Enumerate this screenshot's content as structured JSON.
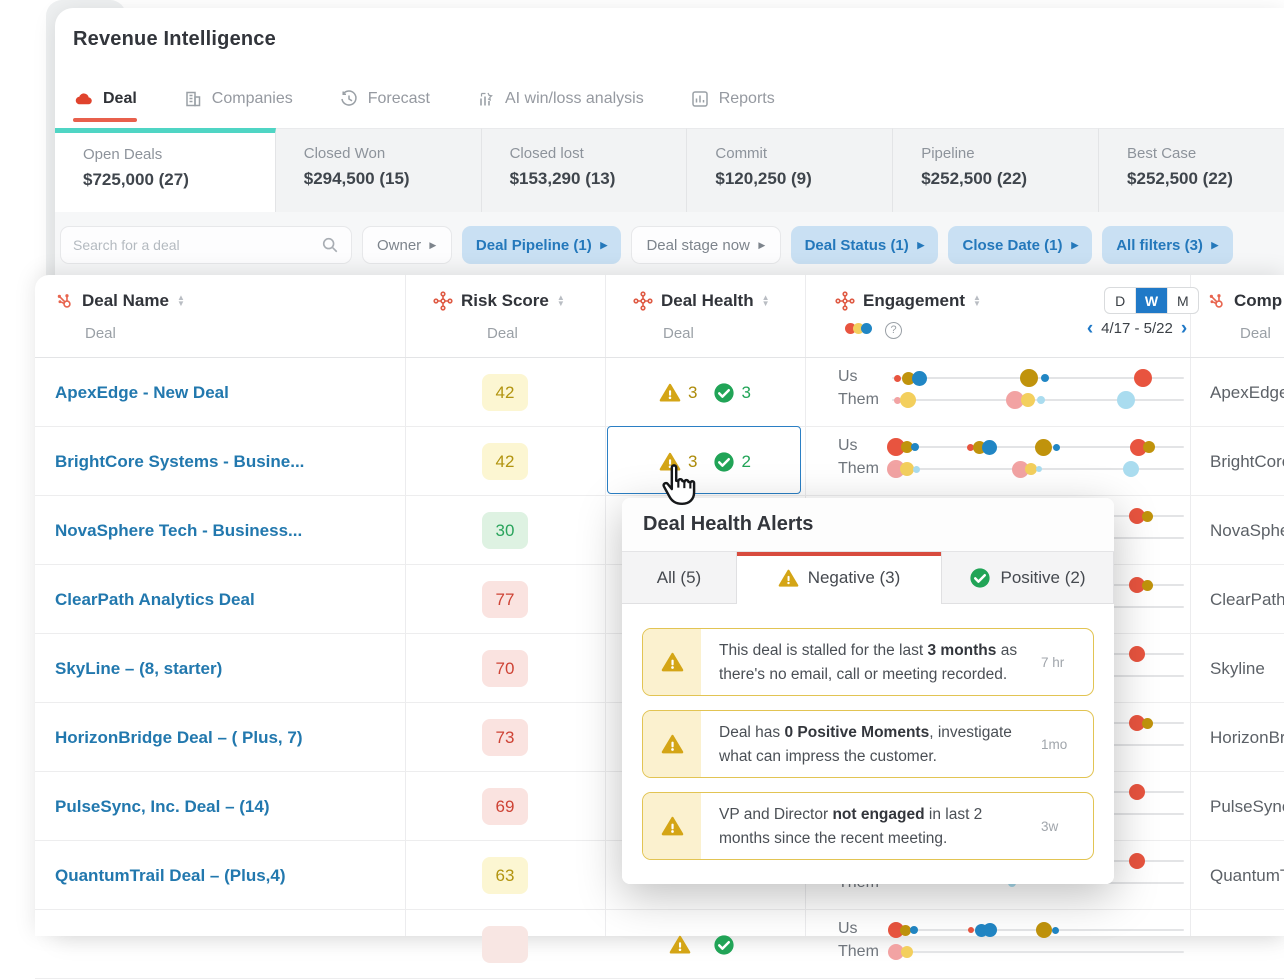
{
  "app": {
    "title": "Revenue Intelligence"
  },
  "nav": {
    "tabs": [
      {
        "label": "Deal",
        "icon": "deal-cloud-icon",
        "active": true
      },
      {
        "label": "Companies",
        "icon": "companies-icon",
        "active": false
      },
      {
        "label": "Forecast",
        "icon": "forecast-icon",
        "active": false
      },
      {
        "label": "AI win/loss analysis",
        "icon": "ai-analysis-icon",
        "active": false
      },
      {
        "label": "Reports",
        "icon": "reports-icon",
        "active": false
      }
    ]
  },
  "summary_cards": [
    {
      "label": "Open Deals",
      "value": "$725,000 (27)",
      "active": true
    },
    {
      "label": "Closed Won",
      "value": "$294,500 (15)",
      "active": false
    },
    {
      "label": "Closed lost",
      "value": "$153,290 (13)",
      "active": false
    },
    {
      "label": "Commit",
      "value": "$120,250 (9)",
      "active": false
    },
    {
      "label": "Pipeline",
      "value": "$252,500 (22)",
      "active": false
    },
    {
      "label": "Best Case",
      "value": "$252,500 (22)",
      "active": false
    }
  ],
  "filters": {
    "search_placeholder": "Search for a deal",
    "chips": [
      {
        "label": "Owner",
        "style": "plain"
      },
      {
        "label": "Deal Pipeline (1)",
        "style": "active"
      },
      {
        "label": "Deal stage now",
        "style": "plain"
      },
      {
        "label": "Deal Status (1)",
        "style": "active"
      },
      {
        "label": "Close Date (1)",
        "style": "active"
      },
      {
        "label": "All filters (3)",
        "style": "active"
      }
    ]
  },
  "table": {
    "sub_label": "Deal",
    "columns": {
      "deal_name": "Deal Name",
      "risk": "Risk Score",
      "health": "Deal Health",
      "engagement": "Engagement",
      "company": "Comp"
    },
    "engagement_header": {
      "legend_colors": [
        "#e8543f",
        "#f3cf5d",
        "#2186c4"
      ],
      "toggle": [
        "D",
        "W",
        "M"
      ],
      "toggle_active": "W",
      "date_range": "4/17 - 5/22",
      "prev": "‹",
      "next": "›"
    },
    "risk_levels": {
      "yellow": {
        "bg": "#fcf6d2",
        "fg": "#b2940f"
      },
      "green": {
        "bg": "#def2e2",
        "fg": "#2aa45c"
      },
      "red": {
        "bg": "#fae3e0",
        "fg": "#ce4335"
      },
      "pink": {
        "bg": "#f8e6e3",
        "fg": "#f8e6e3"
      }
    },
    "dot_colors": {
      "red": "#e8543f",
      "olive": "#c0930c",
      "blue": "#2186c4",
      "pink": "#f2a3a3",
      "yellow": "#f3cf5d",
      "lblue": "#aadcef"
    },
    "rows": [
      {
        "deal_name": "ApexEdge - New Deal",
        "risk": "42",
        "risk_level": "yellow",
        "health": {
          "neg": "3",
          "pos": "3",
          "selected": false
        },
        "company": "ApexEdge",
        "us": [
          {
            "c": "red",
            "f": 0.02,
            "s": 7
          },
          {
            "c": "olive",
            "f": 0.055,
            "s": 13
          },
          {
            "c": "blue",
            "f": 0.095,
            "s": 15
          },
          {
            "c": "olive",
            "f": 0.47,
            "s": 18
          },
          {
            "c": "blue",
            "f": 0.525,
            "s": 8
          },
          {
            "c": "red",
            "f": 0.86,
            "s": 18
          }
        ],
        "them": [
          {
            "c": "pink",
            "f": 0.02,
            "s": 7
          },
          {
            "c": "yellow",
            "f": 0.055,
            "s": 16
          },
          {
            "c": "pink",
            "f": 0.42,
            "s": 18
          },
          {
            "c": "yellow",
            "f": 0.465,
            "s": 14
          },
          {
            "c": "lblue",
            "f": 0.51,
            "s": 8
          },
          {
            "c": "lblue",
            "f": 0.8,
            "s": 18
          }
        ]
      },
      {
        "deal_name": "BrightCore Systems - Busine...",
        "risk": "42",
        "risk_level": "yellow",
        "health": {
          "neg": "3",
          "pos": "2",
          "selected": true
        },
        "company": "BrightCore",
        "us": [
          {
            "c": "red",
            "f": 0.015,
            "s": 18
          },
          {
            "c": "olive",
            "f": 0.05,
            "s": 12
          },
          {
            "c": "blue",
            "f": 0.08,
            "s": 8
          },
          {
            "c": "red",
            "f": 0.27,
            "s": 7
          },
          {
            "c": "olive",
            "f": 0.3,
            "s": 13
          },
          {
            "c": "blue",
            "f": 0.335,
            "s": 15
          },
          {
            "c": "olive",
            "f": 0.52,
            "s": 17
          },
          {
            "c": "blue",
            "f": 0.565,
            "s": 7
          },
          {
            "c": "red",
            "f": 0.845,
            "s": 17
          },
          {
            "c": "olive",
            "f": 0.88,
            "s": 12
          }
        ],
        "them": [
          {
            "c": "pink",
            "f": 0.015,
            "s": 18
          },
          {
            "c": "yellow",
            "f": 0.05,
            "s": 14
          },
          {
            "c": "lblue",
            "f": 0.085,
            "s": 7
          },
          {
            "c": "pink",
            "f": 0.44,
            "s": 17
          },
          {
            "c": "yellow",
            "f": 0.475,
            "s": 12
          },
          {
            "c": "lblue",
            "f": 0.505,
            "s": 6
          },
          {
            "c": "lblue",
            "f": 0.82,
            "s": 16
          }
        ]
      },
      {
        "deal_name": "NovaSphere Tech - Business...",
        "risk": "30",
        "risk_level": "green",
        "health": null,
        "company": "NovaSphere",
        "us": [
          {
            "c": "red",
            "f": 0.84,
            "s": 16
          },
          {
            "c": "olive",
            "f": 0.875,
            "s": 11
          }
        ],
        "them": []
      },
      {
        "deal_name": "ClearPath Analytics Deal",
        "risk": "77",
        "risk_level": "red",
        "health": null,
        "company": "ClearPath",
        "us": [
          {
            "c": "red",
            "f": 0.84,
            "s": 16
          },
          {
            "c": "olive",
            "f": 0.875,
            "s": 11
          }
        ],
        "them": []
      },
      {
        "deal_name": "SkyLine – (8, starter)",
        "risk": "70",
        "risk_level": "red",
        "health": null,
        "company": "Skyline",
        "us": [
          {
            "c": "red",
            "f": 0.84,
            "s": 16
          }
        ],
        "them": []
      },
      {
        "deal_name": "HorizonBridge Deal – ( Plus, 7)",
        "risk": "73",
        "risk_level": "red",
        "health": null,
        "company": "HorizonBridge",
        "us": [
          {
            "c": "red",
            "f": 0.84,
            "s": 16
          },
          {
            "c": "olive",
            "f": 0.875,
            "s": 11
          }
        ],
        "them": []
      },
      {
        "deal_name": "PulseSync, Inc. Deal – (14)",
        "risk": "69",
        "risk_level": "red",
        "health": null,
        "company": "PulseSync",
        "us": [
          {
            "c": "red",
            "f": 0.84,
            "s": 16
          }
        ],
        "them": []
      },
      {
        "deal_name": "QuantumTrail Deal – (Plus,4)",
        "risk": "63",
        "risk_level": "yellow",
        "health": null,
        "company": "QuantumTrail",
        "us": [
          {
            "c": "red",
            "f": 0.84,
            "s": 16
          }
        ],
        "them": [
          {
            "c": "lblue",
            "f": 0.41,
            "s": 8
          }
        ]
      },
      {
        "deal_name": "",
        "risk": "",
        "risk_level": "pink",
        "health": {
          "neg": "",
          "pos": "",
          "selected": false
        },
        "company": "",
        "us": [
          {
            "c": "red",
            "f": 0.015,
            "s": 16
          },
          {
            "c": "olive",
            "f": 0.045,
            "s": 11
          },
          {
            "c": "blue",
            "f": 0.075,
            "s": 8
          },
          {
            "c": "red",
            "f": 0.27,
            "s": 6
          },
          {
            "c": "blue",
            "f": 0.305,
            "s": 13
          },
          {
            "c": "blue",
            "f": 0.335,
            "s": 14
          },
          {
            "c": "olive",
            "f": 0.52,
            "s": 16
          },
          {
            "c": "blue",
            "f": 0.56,
            "s": 7
          }
        ],
        "them": [
          {
            "c": "pink",
            "f": 0.015,
            "s": 16
          },
          {
            "c": "yellow",
            "f": 0.05,
            "s": 12
          }
        ]
      }
    ],
    "row_labels": {
      "us": "Us",
      "them": "Them"
    }
  },
  "popup": {
    "title": "Deal Health Alerts",
    "tabs": [
      {
        "label": "All (5)",
        "icon": null,
        "active": false
      },
      {
        "label": "Negative (3)",
        "icon": "warning",
        "active": true
      },
      {
        "label": "Positive (2)",
        "icon": "check",
        "active": false
      }
    ],
    "alerts": [
      {
        "segments": [
          {
            "t": "This deal is stalled for the last ",
            "b": false
          },
          {
            "t": "3 months",
            "b": true
          },
          {
            "t": " as there's no email, call or meeting recorded.",
            "b": false
          }
        ],
        "time": "7 hr"
      },
      {
        "segments": [
          {
            "t": "Deal has ",
            "b": false
          },
          {
            "t": "0 Positive Moments",
            "b": true
          },
          {
            "t": ", investigate what can impress the customer.",
            "b": false
          }
        ],
        "time": "1mo"
      },
      {
        "segments": [
          {
            "t": "VP and Director ",
            "b": false
          },
          {
            "t": "not engaged",
            "b": true
          },
          {
            "t": " in last 2 months since the recent meeting.",
            "b": false
          }
        ],
        "time": "3w"
      }
    ]
  }
}
